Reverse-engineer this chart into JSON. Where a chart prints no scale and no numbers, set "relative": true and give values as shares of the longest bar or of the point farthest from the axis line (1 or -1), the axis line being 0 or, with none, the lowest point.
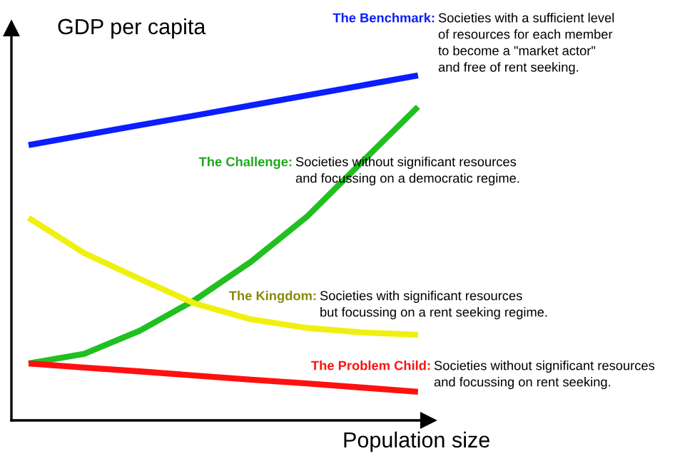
{
  "chart_data": {
    "type": "line",
    "relative": true,
    "xlabel": "Population size",
    "ylabel": "GDP per capita",
    "legend": false,
    "marker": "none",
    "line_style": "solid",
    "categories": [
      null,
      null,
      null,
      null,
      null,
      null,
      null,
      null
    ],
    "series": [
      {
        "name": "The Benchmark:",
        "color": "#0a1eff",
        "values": [
          0.798,
          0.827,
          0.856,
          0.884,
          0.913,
          0.942,
          0.971,
          1.0
        ]
      },
      {
        "name": "The Challenge:",
        "color": "#20c020",
        "values": [
          0.165,
          0.193,
          0.26,
          0.35,
          0.46,
          0.59,
          0.75,
          0.909
        ]
      },
      {
        "name": "The Kingdom:",
        "color": "#f0f010",
        "values": [
          0.587,
          0.485,
          0.41,
          0.338,
          0.293,
          0.268,
          0.255,
          0.248
        ]
      },
      {
        "name": "The Problem Child:",
        "color": "#ff1010",
        "values": [
          0.165,
          0.153,
          0.142,
          0.13,
          0.118,
          0.107,
          0.095,
          0.083
        ]
      }
    ],
    "annotations": [
      "Societies with a sufficient level\nof resources for each member\nto become a \"market actor\"\nand free of rent seeking.",
      "Societies without significant resources\nand focussing on a democratic regime.",
      "Societies with significant resources\nbut focussing on a rent seeking regime.",
      "Societies without significant resources\nand focussing on rent seeking."
    ]
  }
}
